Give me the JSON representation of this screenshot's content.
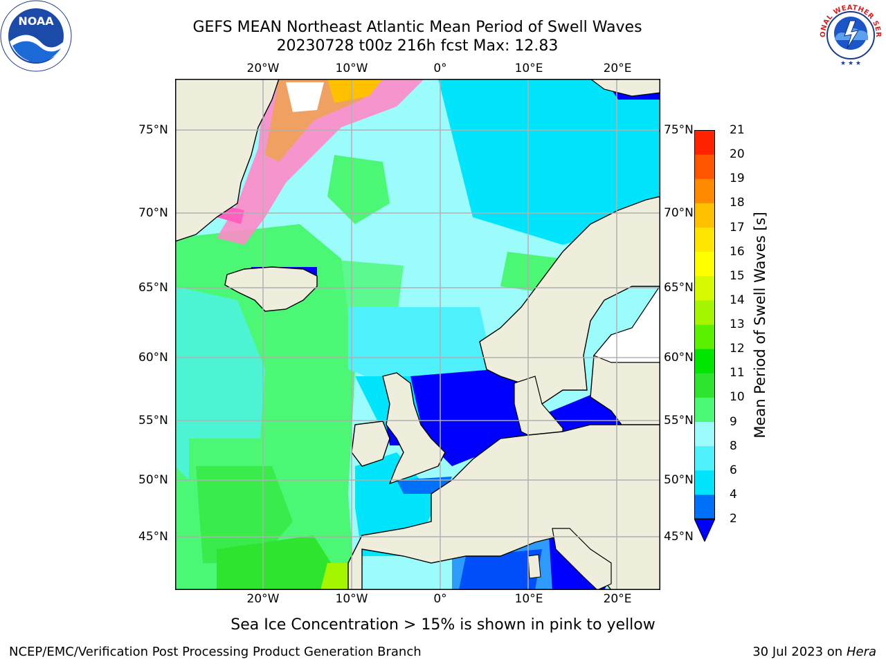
{
  "title": {
    "line1": "GEFS MEAN Northeast Atlantic Mean Period of Swell Waves",
    "line2": "20230728 t00z 216h fcst   Max: 12.83"
  },
  "map": {
    "projection": "plate-carree",
    "lon_range": [
      -30,
      25
    ],
    "lat_range": [
      41,
      78
    ],
    "top_lon_labels": [
      "20°W",
      "10°W",
      "0°",
      "10°E",
      "20°E"
    ],
    "bottom_lon_labels": [
      "20°W",
      "10°W",
      "0°",
      "10°E",
      "20°E"
    ],
    "left_lat_labels": [
      "75°N",
      "70°N",
      "65°N",
      "60°N",
      "55°N",
      "50°N",
      "45°N"
    ],
    "right_lat_labels": [
      "75°N",
      "70°N",
      "65°N",
      "60°N",
      "55°N",
      "50°N",
      "45°N"
    ],
    "colors": {
      "land": "#efeddc",
      "grid": "#b0b0b0"
    }
  },
  "colorbar": {
    "label": "Mean Period of Swell Waves [s]",
    "ticks": [
      "2",
      "4",
      "6",
      "8",
      "9",
      "10",
      "11",
      "12",
      "13",
      "14",
      "15",
      "16",
      "17",
      "18",
      "19",
      "20",
      "21"
    ],
    "colors": [
      "#0000ff",
      "#0070f8",
      "#00e4fc",
      "#4ff2fc",
      "#9cfcfc",
      "#4cf776",
      "#2ee42e",
      "#00e600",
      "#5af000",
      "#a6f500",
      "#d8fa00",
      "#ffff00",
      "#ffe600",
      "#ffc000",
      "#ff8a00",
      "#ff5500",
      "#ff2200",
      "#ff0000"
    ],
    "extend": "min"
  },
  "footnote": "Sea Ice Concentration > 15% is shown in pink to yellow",
  "footer": {
    "left": "NCEP/EMC/Verification Post Processing Product Generation Branch",
    "right_prefix": "30 Jul 2023 on ",
    "right_host": "Hera"
  },
  "logos": {
    "noaa_text": "NOAA",
    "nws_text": "NATIONAL WEATHER SERVICE"
  }
}
